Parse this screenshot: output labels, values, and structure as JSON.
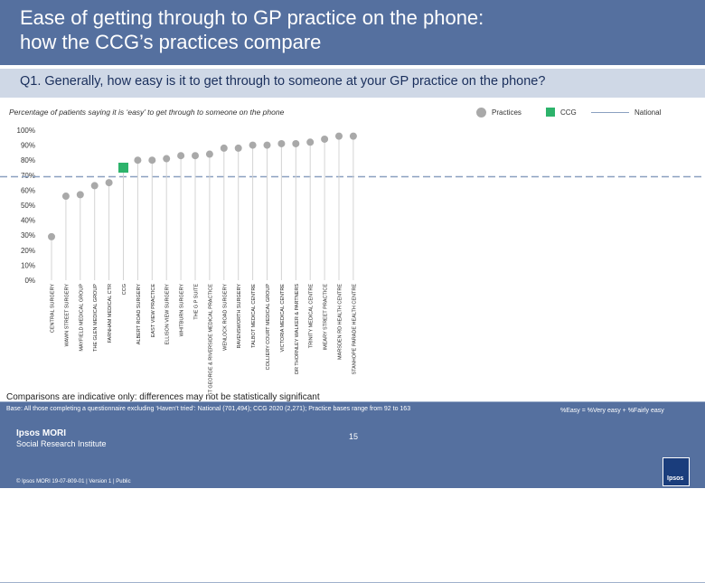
{
  "header": {
    "title": "Ease of getting through to GP practice on the phone:\nhow the CCG’s practices compare"
  },
  "question": "Q1. Generally, how easy is it to get through to someone at your GP practice on the phone?",
  "subtitle": "Percentage of patients saying it is ‘easy’ to get through to someone on the phone",
  "legend": {
    "practices": "Practices",
    "ccg": "CCG",
    "national": "National"
  },
  "colors": {
    "header_bg": "#55709f",
    "practice_marker": "#a9a9a9",
    "ccg_marker": "#2db36b",
    "national_line": "#8aa0c0"
  },
  "chart_data": {
    "type": "scatter",
    "ylim": [
      0,
      100
    ],
    "y_ticks": [
      "0%",
      "10%",
      "20%",
      "30%",
      "40%",
      "50%",
      "60%",
      "70%",
      "80%",
      "90%",
      "100%"
    ],
    "grid": false,
    "legend_position": "top-right",
    "national": 69,
    "categories": [
      "CENTRAL SURGERY",
      "WAWN STREET SURGERY",
      "MAYFIELD MEDICAL GROUP",
      "THE GLEN MEDICAL GROUP",
      "FARNHAM MEDICAL CTR",
      "CCG",
      "ALBERT ROAD SURGERY",
      "EAST VIEW PRACTICE",
      "ELLISON VIEW SURGERY",
      "WHITBURN SURGERY",
      "THE G P SUITE",
      "ST GEORGE & RIVERSIDE MEDICAL PRACTICE",
      "WENLOCK ROAD SURGERY",
      "RAVENSWORTH SURGERY",
      "TALBOT MEDICAL CENTRE",
      "COLLIERY COURT MEDICAL GROUP",
      "VICTORIA MEDICAL CENTRE",
      "DR THORNLEY WALKER & PARTNERS",
      "TRINITY MEDICAL CENTRE",
      "IMEARY STREET PRACTICE",
      "MARSDEN RD HEALTH CENTRE",
      "STANHOPE PARADE HEALTH CENTRE"
    ],
    "values": [
      29,
      56,
      57,
      63,
      65,
      75,
      80,
      80,
      81,
      83,
      83,
      84,
      88,
      88,
      90,
      90,
      91,
      91,
      92,
      94,
      96,
      96
    ],
    "marker_types": [
      "practice",
      "practice",
      "practice",
      "practice",
      "practice",
      "ccg",
      "practice",
      "practice",
      "practice",
      "practice",
      "practice",
      "practice",
      "practice",
      "practice",
      "practice",
      "practice",
      "practice",
      "practice",
      "practice",
      "practice",
      "practice",
      "practice"
    ]
  },
  "comparisons_note": "Comparisons are indicative only: differences may not be statistically significant",
  "footer": {
    "base": "Base: All those completing a questionnaire excluding ‘Haven’t tried’: National (701,494); CCG 2020 (2,271); Practice bases range from 92 to 163",
    "easy_definition": "%Easy = %Very easy + %Fairly easy",
    "page_number": "15",
    "brand_line1": "Ipsos MORI",
    "brand_line2": "Social Research Institute",
    "copyright": "© Ipsos MORI      19-07-809-01 | Version 1 | Public",
    "logo_text": "Ipsos"
  }
}
